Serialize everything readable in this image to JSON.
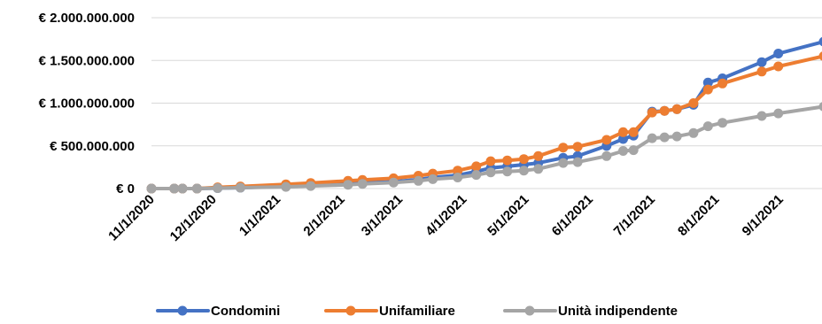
{
  "chart_data": {
    "type": "line",
    "title": "",
    "xlabel": "",
    "ylabel": "",
    "ylim": [
      0,
      2000000000
    ],
    "grid": "horizontal",
    "legend_position": "bottom",
    "y_ticks": [
      {
        "value": 0,
        "label": "€ 0"
      },
      {
        "value": 500000000,
        "label": "€ 500.000.000"
      },
      {
        "value": 1000000000,
        "label": "€ 1.000.000.000"
      },
      {
        "value": 1500000000,
        "label": "€ 1.500.000.000"
      },
      {
        "value": 2000000000,
        "label": "€ 2.000.000.000"
      }
    ],
    "x_ticks": [
      {
        "value": "2020-11-01",
        "label": "11/1/2020"
      },
      {
        "value": "2020-12-01",
        "label": "12/1/2020"
      },
      {
        "value": "2021-01-01",
        "label": "1/1/2021"
      },
      {
        "value": "2021-02-01",
        "label": "2/1/2021"
      },
      {
        "value": "2021-03-01",
        "label": "3/1/2021"
      },
      {
        "value": "2021-04-01",
        "label": "4/1/2021"
      },
      {
        "value": "2021-05-01",
        "label": "5/1/2021"
      },
      {
        "value": "2021-06-01",
        "label": "6/1/2021"
      },
      {
        "value": "2021-07-01",
        "label": "7/1/2021"
      },
      {
        "value": "2021-08-01",
        "label": "8/1/2021"
      },
      {
        "value": "2021-09-01",
        "label": "9/1/2021"
      }
    ],
    "series": [
      {
        "name": "Condomini",
        "color": "#4472c4",
        "points": [
          {
            "x": "2020-11-01",
            "y": 0
          },
          {
            "x": "2020-11-12",
            "y": 0
          },
          {
            "x": "2020-11-16",
            "y": 0
          },
          {
            "x": "2020-11-23",
            "y": 0
          },
          {
            "x": "2020-12-03",
            "y": 5000000
          },
          {
            "x": "2020-12-14",
            "y": 10000000
          },
          {
            "x": "2021-01-05",
            "y": 25000000
          },
          {
            "x": "2021-01-17",
            "y": 35000000
          },
          {
            "x": "2021-02-04",
            "y": 55000000
          },
          {
            "x": "2021-02-11",
            "y": 65000000
          },
          {
            "x": "2021-02-26",
            "y": 80000000
          },
          {
            "x": "2021-03-10",
            "y": 105000000
          },
          {
            "x": "2021-03-17",
            "y": 130000000
          },
          {
            "x": "2021-03-29",
            "y": 155000000
          },
          {
            "x": "2021-04-07",
            "y": 200000000
          },
          {
            "x": "2021-04-14",
            "y": 240000000
          },
          {
            "x": "2021-04-22",
            "y": 260000000
          },
          {
            "x": "2021-04-30",
            "y": 280000000
          },
          {
            "x": "2021-05-07",
            "y": 300000000
          },
          {
            "x": "2021-05-19",
            "y": 360000000
          },
          {
            "x": "2021-05-26",
            "y": 380000000
          },
          {
            "x": "2021-06-09",
            "y": 500000000
          },
          {
            "x": "2021-06-17",
            "y": 580000000
          },
          {
            "x": "2021-06-22",
            "y": 620000000
          },
          {
            "x": "2021-07-01",
            "y": 900000000
          },
          {
            "x": "2021-07-07",
            "y": 910000000
          },
          {
            "x": "2021-07-13",
            "y": 930000000
          },
          {
            "x": "2021-07-21",
            "y": 980000000
          },
          {
            "x": "2021-07-28",
            "y": 1240000000
          },
          {
            "x": "2021-08-04",
            "y": 1290000000
          },
          {
            "x": "2021-08-23",
            "y": 1480000000
          },
          {
            "x": "2021-08-31",
            "y": 1580000000
          },
          {
            "x": "2021-09-22",
            "y": 1720000000
          }
        ]
      },
      {
        "name": "Unifamiliare",
        "color": "#ed7d31",
        "points": [
          {
            "x": "2020-11-01",
            "y": 0
          },
          {
            "x": "2020-11-12",
            "y": 0
          },
          {
            "x": "2020-11-16",
            "y": 0
          },
          {
            "x": "2020-11-23",
            "y": 0
          },
          {
            "x": "2020-12-03",
            "y": 15000000
          },
          {
            "x": "2020-12-14",
            "y": 25000000
          },
          {
            "x": "2021-01-05",
            "y": 50000000
          },
          {
            "x": "2021-01-17",
            "y": 65000000
          },
          {
            "x": "2021-02-04",
            "y": 90000000
          },
          {
            "x": "2021-02-11",
            "y": 100000000
          },
          {
            "x": "2021-02-26",
            "y": 120000000
          },
          {
            "x": "2021-03-10",
            "y": 150000000
          },
          {
            "x": "2021-03-17",
            "y": 175000000
          },
          {
            "x": "2021-03-29",
            "y": 210000000
          },
          {
            "x": "2021-04-07",
            "y": 260000000
          },
          {
            "x": "2021-04-14",
            "y": 320000000
          },
          {
            "x": "2021-04-22",
            "y": 330000000
          },
          {
            "x": "2021-04-30",
            "y": 345000000
          },
          {
            "x": "2021-05-07",
            "y": 380000000
          },
          {
            "x": "2021-05-19",
            "y": 480000000
          },
          {
            "x": "2021-05-26",
            "y": 490000000
          },
          {
            "x": "2021-06-09",
            "y": 570000000
          },
          {
            "x": "2021-06-17",
            "y": 660000000
          },
          {
            "x": "2021-06-22",
            "y": 660000000
          },
          {
            "x": "2021-07-01",
            "y": 890000000
          },
          {
            "x": "2021-07-07",
            "y": 910000000
          },
          {
            "x": "2021-07-13",
            "y": 930000000
          },
          {
            "x": "2021-07-21",
            "y": 1000000000
          },
          {
            "x": "2021-07-28",
            "y": 1160000000
          },
          {
            "x": "2021-08-04",
            "y": 1230000000
          },
          {
            "x": "2021-08-23",
            "y": 1370000000
          },
          {
            "x": "2021-08-31",
            "y": 1430000000
          },
          {
            "x": "2021-09-22",
            "y": 1550000000
          }
        ]
      },
      {
        "name": "Unità indipendente",
        "color": "#a5a5a5",
        "points": [
          {
            "x": "2020-11-01",
            "y": 0
          },
          {
            "x": "2020-11-12",
            "y": 0
          },
          {
            "x": "2020-11-16",
            "y": 0
          },
          {
            "x": "2020-11-23",
            "y": 0
          },
          {
            "x": "2020-12-03",
            "y": 5000000
          },
          {
            "x": "2020-12-14",
            "y": 10000000
          },
          {
            "x": "2021-01-05",
            "y": 20000000
          },
          {
            "x": "2021-01-17",
            "y": 30000000
          },
          {
            "x": "2021-02-04",
            "y": 45000000
          },
          {
            "x": "2021-02-11",
            "y": 55000000
          },
          {
            "x": "2021-02-26",
            "y": 70000000
          },
          {
            "x": "2021-03-10",
            "y": 90000000
          },
          {
            "x": "2021-03-17",
            "y": 110000000
          },
          {
            "x": "2021-03-29",
            "y": 130000000
          },
          {
            "x": "2021-04-07",
            "y": 160000000
          },
          {
            "x": "2021-04-14",
            "y": 190000000
          },
          {
            "x": "2021-04-22",
            "y": 200000000
          },
          {
            "x": "2021-04-30",
            "y": 210000000
          },
          {
            "x": "2021-05-07",
            "y": 230000000
          },
          {
            "x": "2021-05-19",
            "y": 300000000
          },
          {
            "x": "2021-05-26",
            "y": 310000000
          },
          {
            "x": "2021-06-09",
            "y": 380000000
          },
          {
            "x": "2021-06-17",
            "y": 440000000
          },
          {
            "x": "2021-06-22",
            "y": 450000000
          },
          {
            "x": "2021-07-01",
            "y": 590000000
          },
          {
            "x": "2021-07-07",
            "y": 600000000
          },
          {
            "x": "2021-07-13",
            "y": 610000000
          },
          {
            "x": "2021-07-21",
            "y": 650000000
          },
          {
            "x": "2021-07-28",
            "y": 730000000
          },
          {
            "x": "2021-08-04",
            "y": 770000000
          },
          {
            "x": "2021-08-23",
            "y": 850000000
          },
          {
            "x": "2021-08-31",
            "y": 880000000
          },
          {
            "x": "2021-09-22",
            "y": 960000000
          }
        ]
      }
    ]
  }
}
